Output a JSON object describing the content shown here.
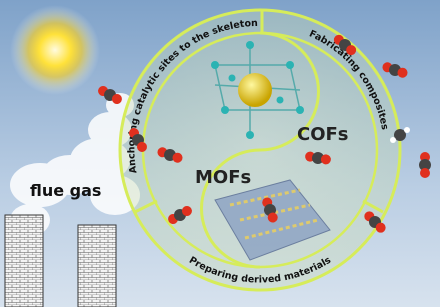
{
  "smoke_label": "flue gas",
  "center": {
    "left": "MOFs",
    "right": "COFs"
  },
  "ring": {
    "top_left": "Anchoring catalytic sites to the skeleton",
    "top_right": "Fabricating composites",
    "bottom": "Preparing derived materials"
  }
}
